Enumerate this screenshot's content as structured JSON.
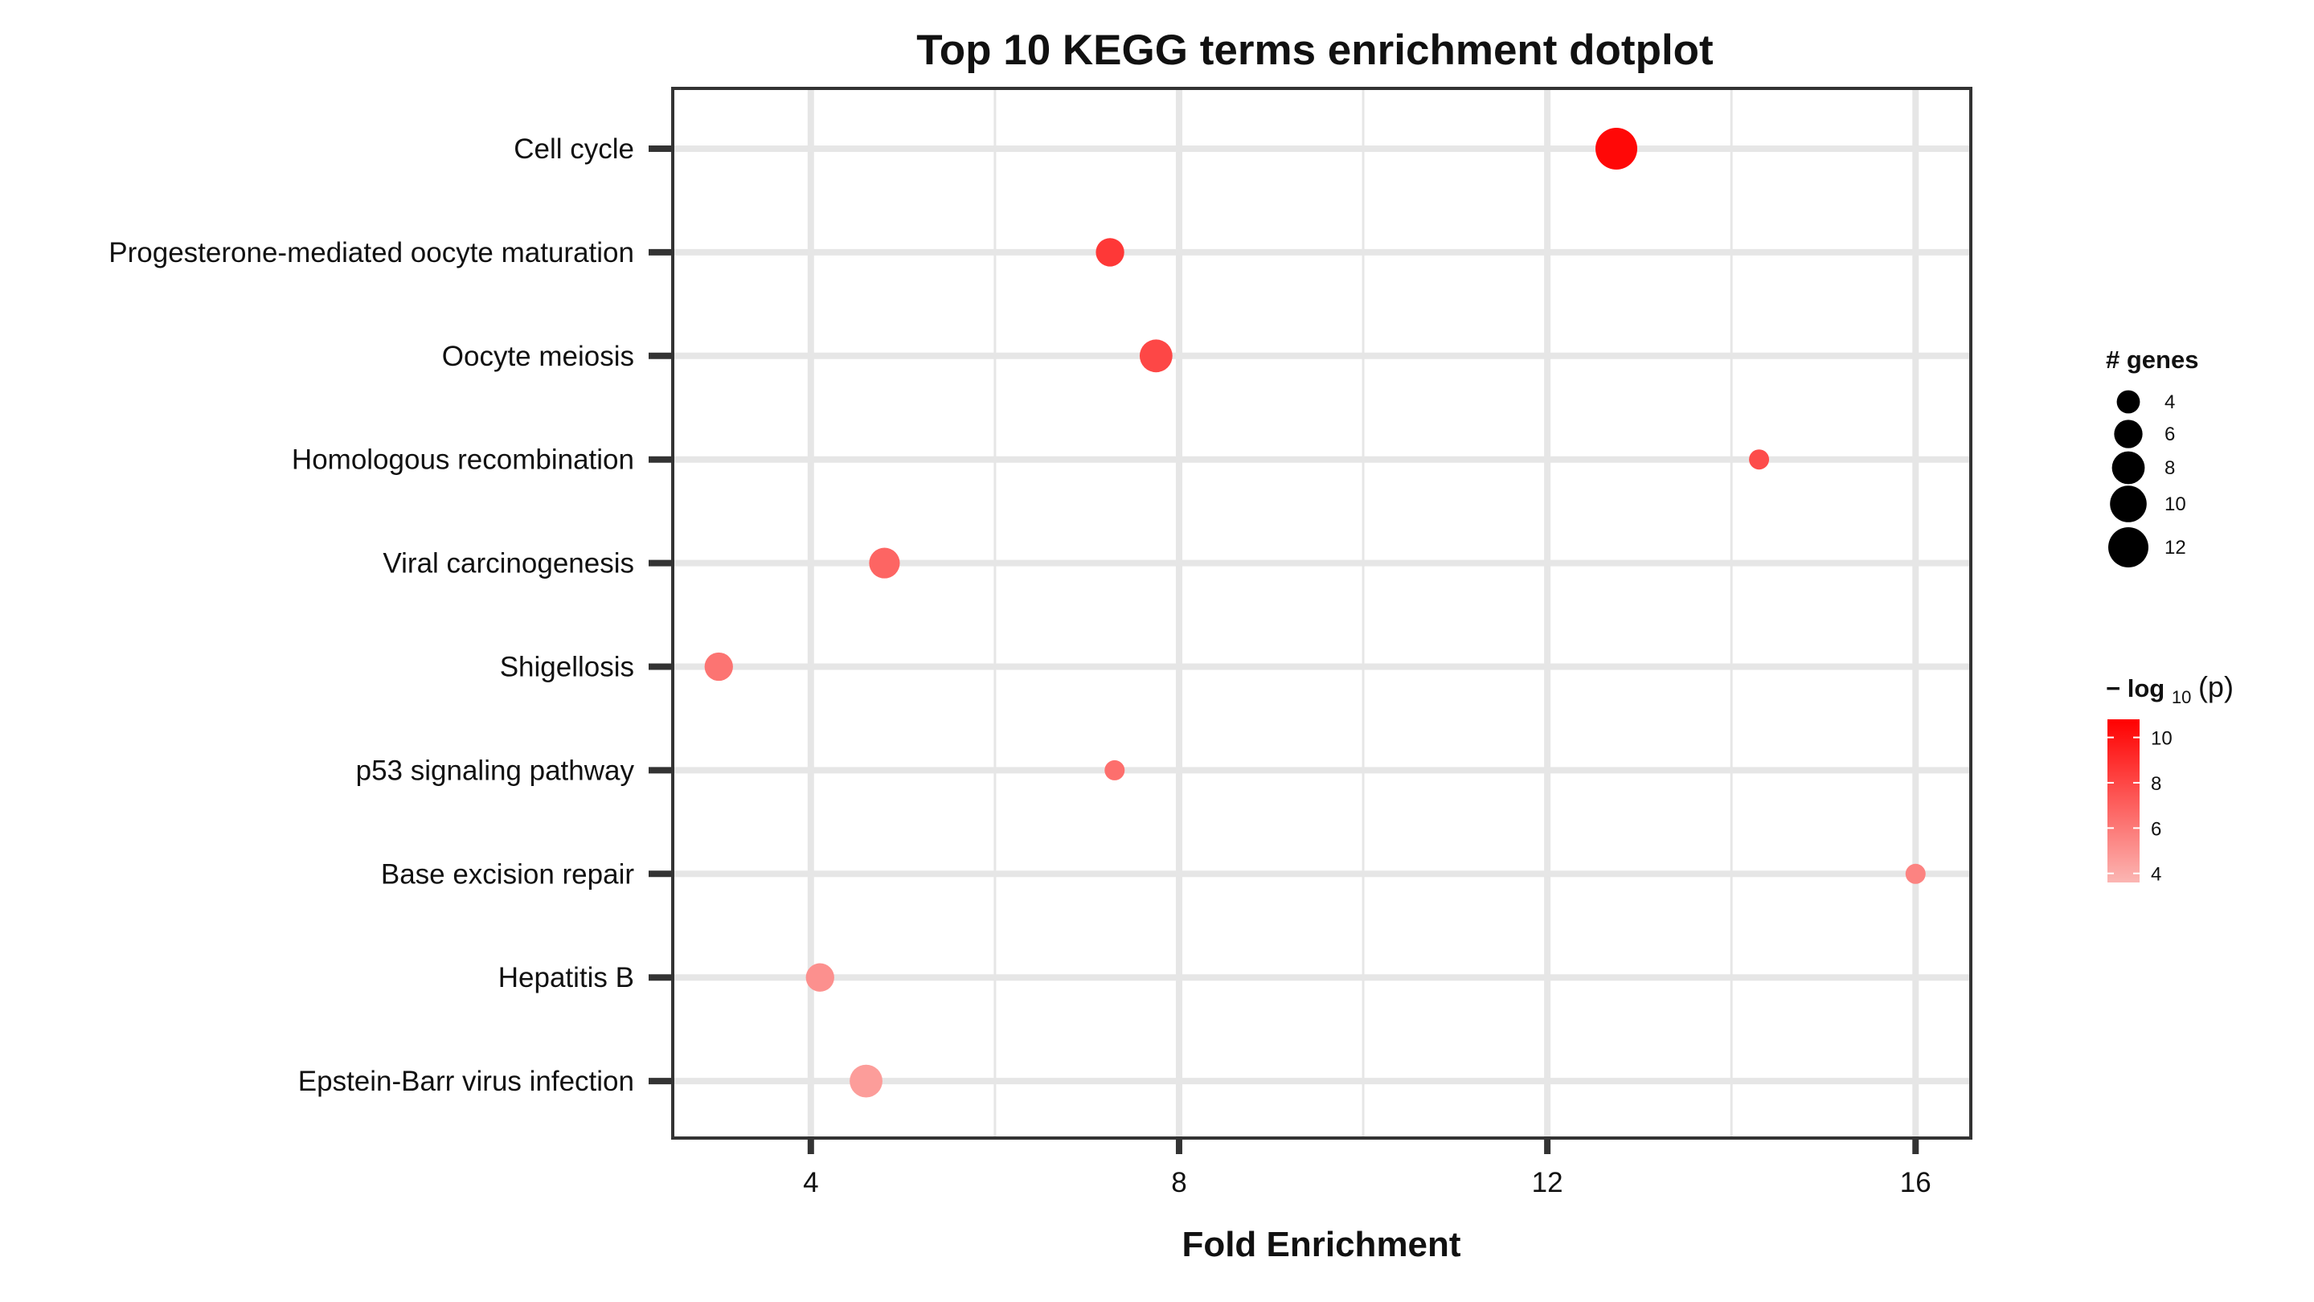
{
  "chart_data": {
    "type": "scatter",
    "title": "Top 10 KEGG terms enrichment dotplot",
    "xlabel": "Fold Enrichment",
    "ylabel": "",
    "xlim": [
      2.5,
      16.6
    ],
    "xticks": [
      4,
      8,
      12,
      16
    ],
    "grid": true,
    "legend_position": "right",
    "color_low": "#fbb6b3",
    "color_high": "#ff0000",
    "points": [
      {
        "term": "Cell cycle",
        "fold_enrichment": 12.75,
        "genes": 13,
        "neg_log10_p": 10.5
      },
      {
        "term": "Progesterone-mediated oocyte maturation",
        "fold_enrichment": 7.25,
        "genes": 6,
        "neg_log10_p": 8.6
      },
      {
        "term": "Oocyte meiosis",
        "fold_enrichment": 7.75,
        "genes": 8,
        "neg_log10_p": 8.0
      },
      {
        "term": "Homologous recombination",
        "fold_enrichment": 14.3,
        "genes": 3,
        "neg_log10_p": 7.8
      },
      {
        "term": "Viral carcinogenesis",
        "fold_enrichment": 4.8,
        "genes": 7,
        "neg_log10_p": 6.8
      },
      {
        "term": "Shigellosis",
        "fold_enrichment": 3.0,
        "genes": 6,
        "neg_log10_p": 6.2
      },
      {
        "term": "p53 signaling pathway",
        "fold_enrichment": 7.3,
        "genes": 3,
        "neg_log10_p": 6.4
      },
      {
        "term": "Base excision repair",
        "fold_enrichment": 16.0,
        "genes": 3,
        "neg_log10_p": 5.6
      },
      {
        "term": "Hepatitis B",
        "fold_enrichment": 4.1,
        "genes": 6,
        "neg_log10_p": 5.1
      },
      {
        "term": "Epstein-Barr virus infection",
        "fold_enrichment": 4.6,
        "genes": 8,
        "neg_log10_p": 4.6
      }
    ],
    "size_legend": {
      "title": "# genes",
      "values": [
        4,
        6,
        8,
        10,
        12
      ]
    },
    "color_legend": {
      "title_prefix": "− log",
      "title_subscript": "10",
      "title_suffix": "(p)",
      "range": [
        3.6,
        10.8
      ],
      "ticks": [
        4,
        6,
        8,
        10
      ]
    }
  }
}
